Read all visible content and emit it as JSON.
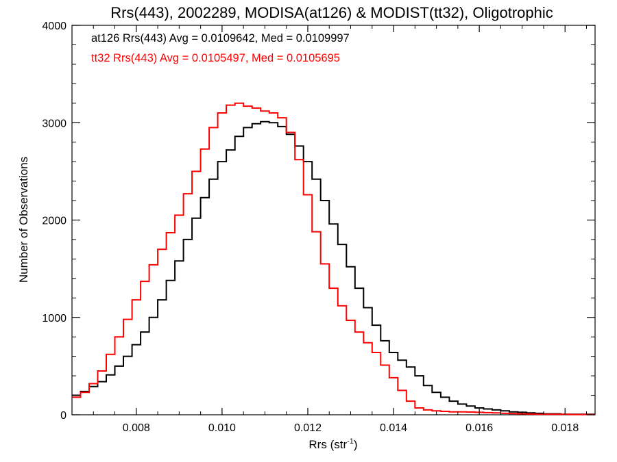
{
  "chart_data": {
    "type": "line",
    "title": "Rrs(443), 2002289, MODISA(at126) & MODIST(tt32), Oligotrophic",
    "xlabel_main": "Rrs (str",
    "xlabel_sup": "-1",
    "xlabel_end": ")",
    "ylabel": "Number of Observations",
    "xlim": [
      0.0065,
      0.0187
    ],
    "ylim": [
      0,
      4000
    ],
    "x_ticks": [
      0.008,
      0.01,
      0.012,
      0.014,
      0.016,
      0.018
    ],
    "x_tick_labels": [
      "0.008",
      "0.010",
      "0.012",
      "0.014",
      "0.016",
      "0.018"
    ],
    "y_ticks": [
      0,
      1000,
      2000,
      3000,
      4000
    ],
    "y_tick_labels": [
      "0",
      "1000",
      "2000",
      "3000",
      "4000"
    ],
    "grid": false,
    "annotations": [
      {
        "text": "at126 Rrs(443) Avg = 0.0109642, Med = 0.0109997",
        "color": "#000000"
      },
      {
        "text": "tt32 Rrs(443) Avg = 0.0105497, Med = 0.0105695",
        "color": "#ff0000"
      }
    ],
    "series": [
      {
        "color": "#000000",
        "x": [
          0.0065,
          0.0067,
          0.0069,
          0.0071,
          0.0073,
          0.0075,
          0.0077,
          0.0079,
          0.0081,
          0.0083,
          0.0085,
          0.0087,
          0.0089,
          0.0091,
          0.0093,
          0.0095,
          0.0097,
          0.0099,
          0.0101,
          0.0103,
          0.0105,
          0.0107,
          0.0109,
          0.0111,
          0.0113,
          0.0115,
          0.0117,
          0.0119,
          0.0121,
          0.0123,
          0.0125,
          0.0127,
          0.0129,
          0.0131,
          0.0133,
          0.0135,
          0.0137,
          0.0139,
          0.0141,
          0.0143,
          0.0145,
          0.0147,
          0.0149,
          0.0151,
          0.0153,
          0.0155,
          0.0157,
          0.0159,
          0.0161,
          0.0163,
          0.0165,
          0.0167,
          0.0169,
          0.0171,
          0.0173,
          0.0175,
          0.0177,
          0.0179,
          0.0181,
          0.0183,
          0.0185,
          0.0187
        ],
        "y": [
          200,
          240,
          290,
          340,
          410,
          500,
          600,
          720,
          850,
          1000,
          1180,
          1380,
          1580,
          1800,
          2020,
          2230,
          2420,
          2600,
          2720,
          2860,
          2950,
          2990,
          3010,
          3000,
          2960,
          2880,
          2760,
          2600,
          2420,
          2200,
          1960,
          1750,
          1520,
          1300,
          1100,
          920,
          760,
          640,
          560,
          490,
          400,
          300,
          230,
          180,
          140,
          110,
          90,
          70,
          60,
          50,
          40,
          30,
          25,
          20,
          15,
          10,
          10,
          5,
          5,
          5,
          5,
          5
        ]
      },
      {
        "color": "#ff0000",
        "x": [
          0.0065,
          0.0067,
          0.0069,
          0.0071,
          0.0073,
          0.0075,
          0.0077,
          0.0079,
          0.0081,
          0.0083,
          0.0085,
          0.0087,
          0.0089,
          0.0091,
          0.0093,
          0.0095,
          0.0097,
          0.0099,
          0.0101,
          0.0103,
          0.0105,
          0.0107,
          0.0109,
          0.0111,
          0.0113,
          0.0115,
          0.0117,
          0.0119,
          0.0121,
          0.0123,
          0.0125,
          0.0127,
          0.0129,
          0.0131,
          0.0133,
          0.0135,
          0.0137,
          0.0139,
          0.0141,
          0.0143,
          0.0145,
          0.0147,
          0.0149,
          0.0151,
          0.0153,
          0.0155,
          0.0157,
          0.0159,
          0.0161,
          0.0163,
          0.0165,
          0.0167,
          0.0169,
          0.0171,
          0.0173,
          0.0175,
          0.0177,
          0.0179,
          0.0181,
          0.0183,
          0.0185,
          0.0187
        ],
        "y": [
          180,
          230,
          320,
          450,
          620,
          800,
          980,
          1180,
          1370,
          1540,
          1700,
          1870,
          2050,
          2270,
          2500,
          2730,
          2950,
          3100,
          3180,
          3200,
          3170,
          3150,
          3120,
          3100,
          3050,
          2900,
          2620,
          2260,
          1880,
          1550,
          1300,
          1120,
          970,
          850,
          740,
          640,
          510,
          380,
          250,
          140,
          70,
          50,
          40,
          35,
          30,
          30,
          28,
          25,
          22,
          20,
          15,
          12,
          10,
          8,
          5,
          5,
          5,
          5,
          3,
          3,
          3,
          3
        ]
      }
    ]
  }
}
